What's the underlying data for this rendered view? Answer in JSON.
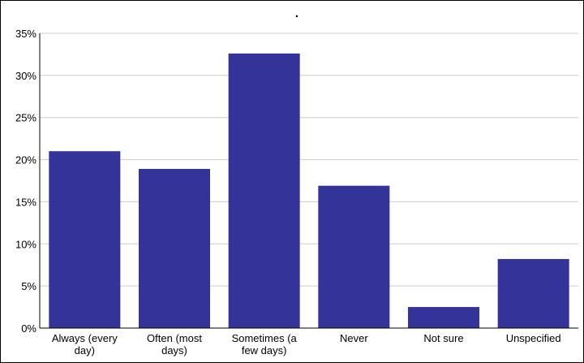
{
  "chart_data": {
    "type": "bar",
    "title": ".",
    "categories": [
      [
        "Always (every",
        "day)"
      ],
      [
        "Often (most",
        "days)"
      ],
      [
        "Sometimes (a",
        "few days)"
      ],
      [
        "Never"
      ],
      [
        "Not sure"
      ],
      [
        "Unspecified"
      ]
    ],
    "values": [
      21.0,
      18.9,
      32.6,
      16.9,
      2.5,
      8.2
    ],
    "ylim": [
      0,
      35
    ],
    "yticks": [
      "0%",
      "5%",
      "10%",
      "15%",
      "20%",
      "25%",
      "30%",
      "35%"
    ],
    "ytick_values": [
      0,
      5,
      10,
      15,
      20,
      25,
      30,
      35
    ],
    "grid": true,
    "bar_color": "#333399",
    "grid_color": "#cccccc"
  }
}
